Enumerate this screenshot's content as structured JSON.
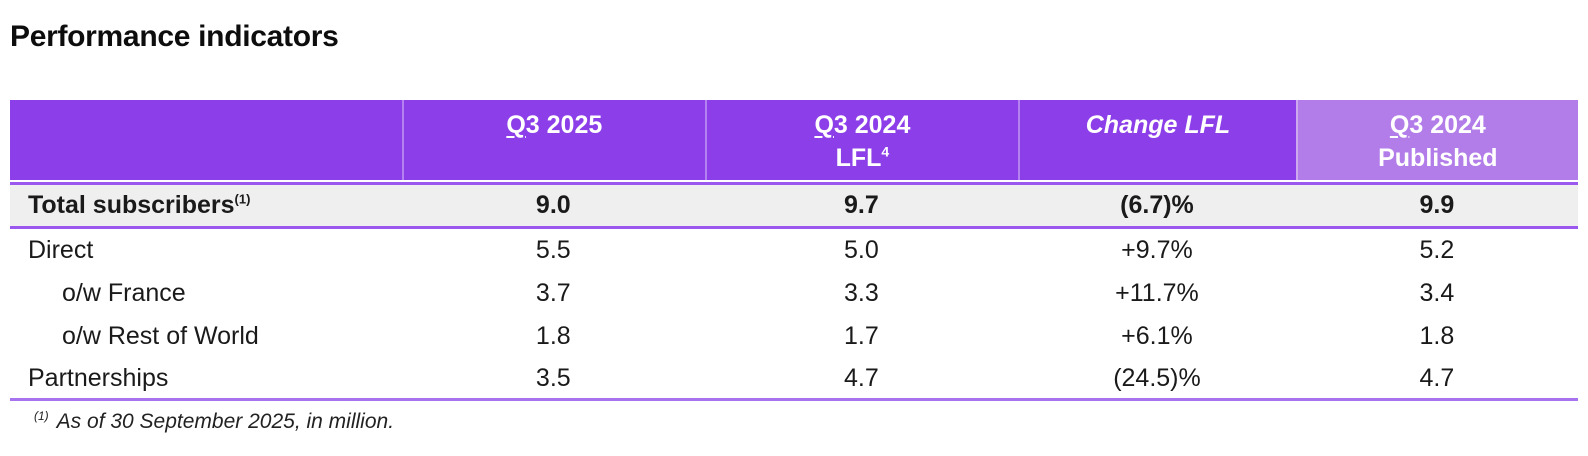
{
  "colors": {
    "purple_main": "#8C3EE9",
    "purple_light": "#B27DE9",
    "row_border": "#9B58EE",
    "table_bottom_border": "#A873EF",
    "total_row_bg": "#EFEFEF",
    "header_text": "#FFFFFF",
    "text": "#1A1A1A"
  },
  "page": {
    "title": "Performance indicators"
  },
  "table": {
    "header": {
      "col1": {
        "line1": "Q3 2025",
        "line2": "",
        "sup": ""
      },
      "col2": {
        "line1": "Q3 2024",
        "line2": "LFL",
        "sup": "4"
      },
      "col3": {
        "line1": "Change LFL",
        "line2": "",
        "sup": ""
      },
      "col4": {
        "line1": "Q3 2024",
        "line2": "Published",
        "sup": ""
      }
    },
    "rows": [
      {
        "label": "Total subscribers",
        "label_sup": "(1)",
        "values": [
          "9.0",
          "9.7",
          "(6.7)%",
          "9.9"
        ]
      },
      {
        "label": "Direct",
        "label_sup": "",
        "values": [
          "5.5",
          "5.0",
          "+9.7%",
          "5.2"
        ]
      },
      {
        "label": "o/w France",
        "label_sup": "",
        "values": [
          "3.7",
          "3.3",
          "+11.7%",
          "3.4"
        ]
      },
      {
        "label": "o/w Rest of World",
        "label_sup": "",
        "values": [
          "1.8",
          "1.7",
          "+6.1%",
          "1.8"
        ]
      },
      {
        "label": "Partnerships",
        "label_sup": "",
        "values": [
          "3.5",
          "4.7",
          "(24.5)%",
          "4.7"
        ]
      }
    ],
    "footnote": {
      "sup": "(1)",
      "text": "As of 30 September 2025, in million."
    }
  }
}
